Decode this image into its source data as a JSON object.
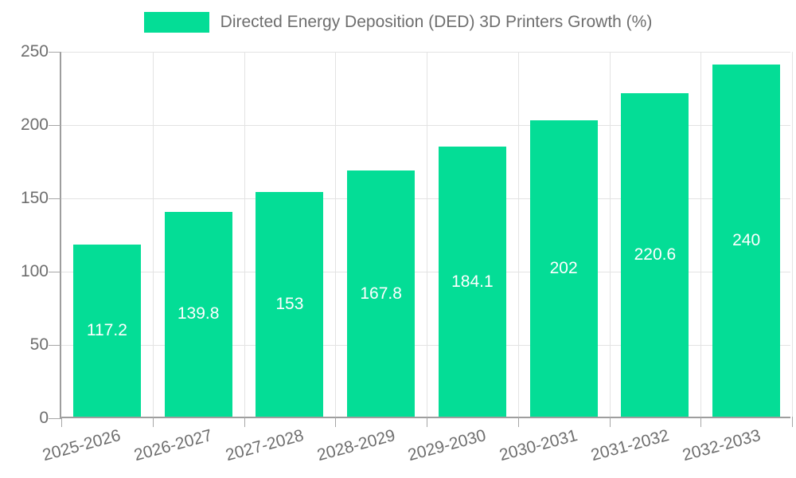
{
  "legend": {
    "label": "Directed Energy Deposition (DED) 3D Printers Growth (%)"
  },
  "chart_data": {
    "type": "bar",
    "title": "Directed Energy Deposition (DED) 3D Printers Growth (%)",
    "categories": [
      "2025-2026",
      "2026-2027",
      "2027-2028",
      "2028-2029",
      "2029-2030",
      "2030-2031",
      "2031-2032",
      "2032-2033"
    ],
    "values": [
      117.2,
      139.8,
      153,
      167.8,
      184.1,
      202,
      220.6,
      240
    ],
    "series": [
      {
        "name": "Directed Energy Deposition (DED) 3D Printers Growth (%)",
        "values": [
          117.2,
          139.8,
          153,
          167.8,
          184.1,
          202,
          220.6,
          240
        ]
      }
    ],
    "xlabel": "",
    "ylabel": "",
    "ylim": [
      0,
      250
    ],
    "yticks": [
      0,
      50,
      100,
      150,
      200,
      250
    ],
    "grid": true,
    "legend_position": "top",
    "value_label_position": "inside-center"
  },
  "colors": {
    "bar": "#04dd96",
    "value_label": "#ffffff",
    "axis_line": "#9e9e9e",
    "grid_line": "#e3e3e3",
    "tick": "#a6a6a6",
    "text": "#6e6e6e",
    "background": "#ffffff"
  }
}
